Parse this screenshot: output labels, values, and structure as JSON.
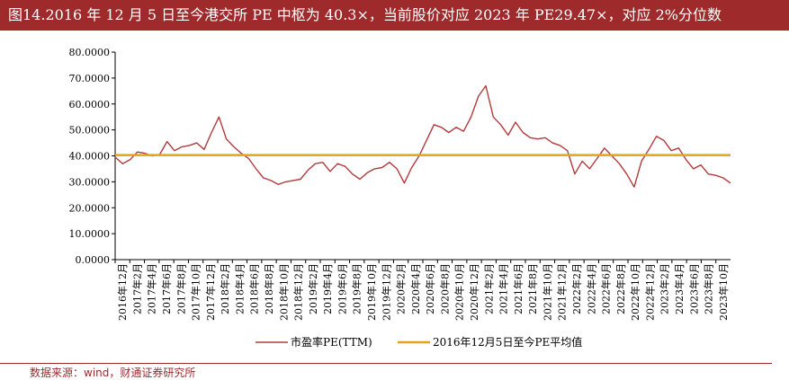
{
  "title": "图14.2016 年 12 月 5 日至今港交所 PE 中枢为 40.3×，当前股价对应 2023 年 PE29.47×，对应 2%分位数",
  "source": "数据来源：wind，财通证券研究所",
  "colors": {
    "title_bg": "#9e2a2b",
    "pe_line": "#b33a3a",
    "avg_line": "#e3a31a"
  },
  "chart_data": {
    "type": "line",
    "title": "",
    "xlabel": "",
    "ylabel": "",
    "ylim": [
      0,
      80
    ],
    "yticks": [
      "80.0000",
      "70.0000",
      "60.0000",
      "50.0000",
      "40.0000",
      "30.0000",
      "20.0000",
      "10.0000",
      "0.0000"
    ],
    "xticks": [
      "2016年12月",
      "2017年2月",
      "2017年4月",
      "2017年6月",
      "2017年8月",
      "2017年10月",
      "2017年12月",
      "2018年2月",
      "2018年4月",
      "2018年6月",
      "2018年8月",
      "2018年10月",
      "2018年12月",
      "2019年2月",
      "2019年4月",
      "2019年6月",
      "2019年8月",
      "2019年10月",
      "2019年12月",
      "2020年2月",
      "2020年4月",
      "2020年6月",
      "2020年8月",
      "2020年10月",
      "2020年12月",
      "2021年2月",
      "2021年4月",
      "2021年6月",
      "2021年8月",
      "2021年10月",
      "2021年12月",
      "2022年2月",
      "2022年4月",
      "2022年6月",
      "2022年8月",
      "2022年10月",
      "2022年12月",
      "2023年2月",
      "2023年4月",
      "2023年6月",
      "2023年8月",
      "2023年10月"
    ],
    "legend_position": "bottom",
    "grid": false,
    "series": [
      {
        "name": "市盈率PE(TTM)",
        "type": "line",
        "x": [
          "2016-12",
          "2017-01",
          "2017-02",
          "2017-03",
          "2017-04",
          "2017-05",
          "2017-06",
          "2017-07",
          "2017-08",
          "2017-09",
          "2017-10",
          "2017-11",
          "2017-12",
          "2018-01",
          "2018-02",
          "2018-03",
          "2018-04",
          "2018-05",
          "2018-06",
          "2018-07",
          "2018-08",
          "2018-09",
          "2018-10",
          "2018-11",
          "2018-12",
          "2019-01",
          "2019-02",
          "2019-03",
          "2019-04",
          "2019-05",
          "2019-06",
          "2019-07",
          "2019-08",
          "2019-09",
          "2019-10",
          "2019-11",
          "2019-12",
          "2020-01",
          "2020-02",
          "2020-03",
          "2020-04",
          "2020-05",
          "2020-06",
          "2020-07",
          "2020-08",
          "2020-09",
          "2020-10",
          "2020-11",
          "2020-12",
          "2021-01",
          "2021-02",
          "2021-03",
          "2021-04",
          "2021-05",
          "2021-06",
          "2021-07",
          "2021-08",
          "2021-09",
          "2021-10",
          "2021-11",
          "2021-12",
          "2022-01",
          "2022-02",
          "2022-03",
          "2022-04",
          "2022-05",
          "2022-06",
          "2022-07",
          "2022-08",
          "2022-09",
          "2022-10",
          "2022-11",
          "2022-12",
          "2023-01",
          "2023-02",
          "2023-03",
          "2023-04",
          "2023-05",
          "2023-06",
          "2023-07",
          "2023-08",
          "2023-09",
          "2023-10",
          "2023-11"
        ],
        "values": [
          39.5,
          37.0,
          38.5,
          41.5,
          41.0,
          40.0,
          40.5,
          45.5,
          42.0,
          43.5,
          44.0,
          45.0,
          42.5,
          49.0,
          55.0,
          46.5,
          43.5,
          41.0,
          39.0,
          35.0,
          31.5,
          30.5,
          29.0,
          30.0,
          30.5,
          31.0,
          34.5,
          37.0,
          37.5,
          34.0,
          37.0,
          36.0,
          33.0,
          31.0,
          33.5,
          35.0,
          35.5,
          37.5,
          35.0,
          29.5,
          35.5,
          40.0,
          46.0,
          52.0,
          51.0,
          49.0,
          51.0,
          49.5,
          55.0,
          63.0,
          67.0,
          55.0,
          52.0,
          48.0,
          53.0,
          49.0,
          47.0,
          46.5,
          47.0,
          45.0,
          44.0,
          42.0,
          33.0,
          38.0,
          35.0,
          39.0,
          43.0,
          40.0,
          37.0,
          33.0,
          28.0,
          38.0,
          42.5,
          47.5,
          46.0,
          42.0,
          43.0,
          38.5,
          35.0,
          36.5,
          33.0,
          32.5,
          31.5,
          29.5
        ]
      },
      {
        "name": "2016年12月5日至今PE平均值",
        "type": "line",
        "values": [
          40.3
        ]
      }
    ]
  }
}
